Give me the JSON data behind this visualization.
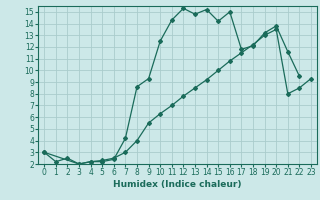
{
  "title": "",
  "xlabel": "Humidex (Indice chaleur)",
  "background_color": "#cce8e8",
  "grid_color": "#aacccc",
  "line_color": "#1a6b5a",
  "spine_color": "#1a6b5a",
  "xlim": [
    -0.5,
    23.5
  ],
  "ylim": [
    2,
    15.5
  ],
  "xticks": [
    0,
    1,
    2,
    3,
    4,
    5,
    6,
    7,
    8,
    9,
    10,
    11,
    12,
    13,
    14,
    15,
    16,
    17,
    18,
    19,
    20,
    21,
    22,
    23
  ],
  "yticks": [
    2,
    3,
    4,
    5,
    6,
    7,
    8,
    9,
    10,
    11,
    12,
    13,
    14,
    15
  ],
  "line1_x": [
    0,
    1,
    2,
    3,
    4,
    5,
    6,
    7,
    8,
    9,
    10,
    11,
    12,
    13,
    14,
    15,
    16,
    17,
    18,
    19,
    20,
    21,
    22
  ],
  "line1_y": [
    3.0,
    2.2,
    2.5,
    2.0,
    2.2,
    2.2,
    2.4,
    4.2,
    8.6,
    9.3,
    12.5,
    14.3,
    15.3,
    14.8,
    15.2,
    14.2,
    15.0,
    11.8,
    12.1,
    13.2,
    13.8,
    11.6,
    9.5
  ],
  "line2_x": [
    0,
    3,
    4,
    5,
    6,
    7,
    8,
    9,
    10,
    11,
    12,
    13,
    14,
    15,
    16,
    17,
    18,
    19,
    20,
    21,
    22,
    23
  ],
  "line2_y": [
    3.0,
    2.0,
    2.2,
    2.3,
    2.5,
    3.0,
    4.0,
    5.5,
    6.3,
    7.0,
    7.8,
    8.5,
    9.2,
    10.0,
    10.8,
    11.5,
    12.2,
    13.0,
    13.5,
    8.0,
    8.5,
    9.3
  ],
  "tick_fontsize": 5.5,
  "xlabel_fontsize": 6.5
}
